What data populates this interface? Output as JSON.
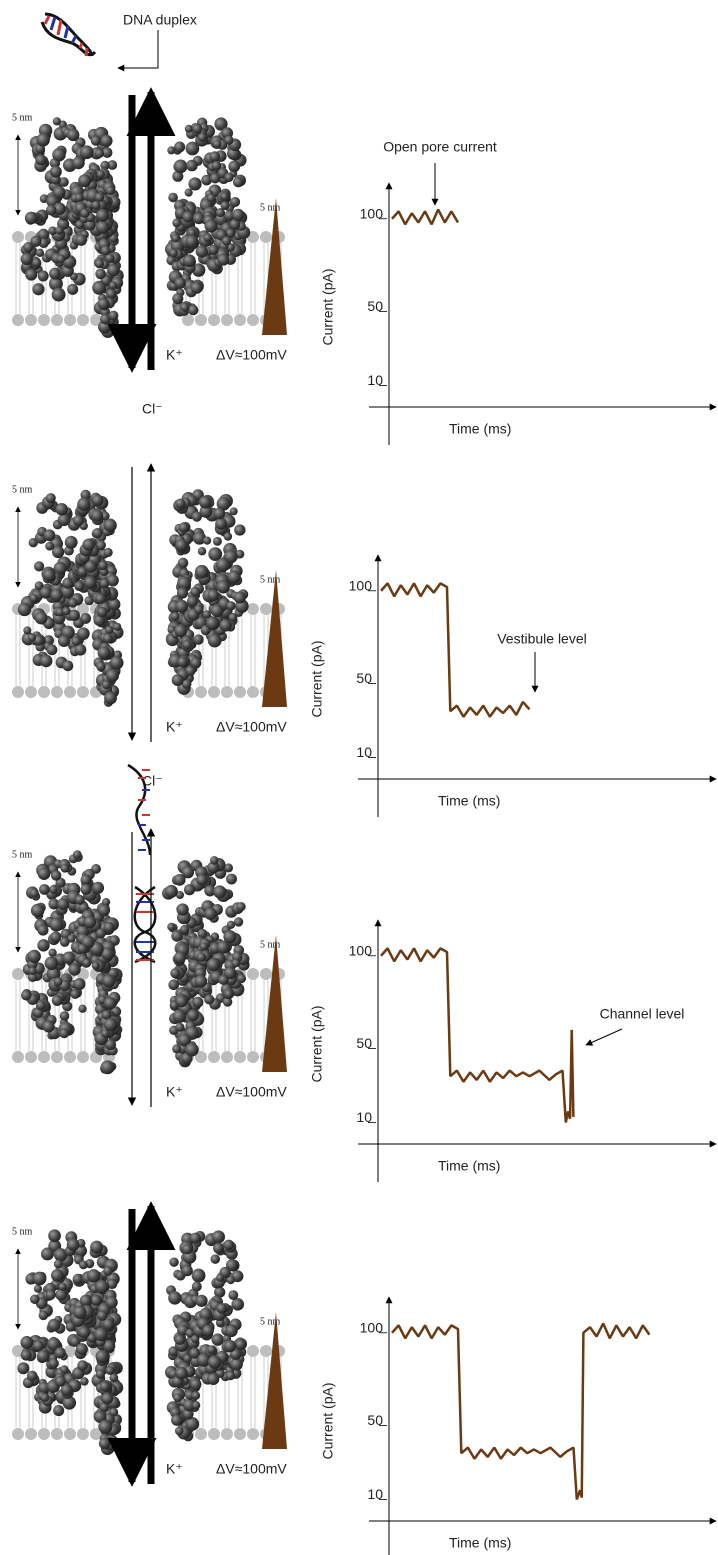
{
  "header": {
    "dna_label": "DNA duplex"
  },
  "panels": [
    {
      "scale_left": "5 nm",
      "scale_right": "5 nm",
      "cation": "K⁺",
      "voltage": "ΔV≈100mV",
      "anion": "Cl⁻"
    },
    {
      "scale_left": "5 nm",
      "scale_right": "5 nm",
      "cation": "K⁺",
      "voltage": "ΔV≈100mV",
      "anion": "Cl⁻"
    },
    {
      "scale_left": "5 nm",
      "scale_right": "5 nm",
      "cation": "K⁺",
      "voltage": "ΔV≈100mV"
    },
    {
      "scale_left": "5 nm",
      "scale_right": "5 nm",
      "cation": "K⁺",
      "voltage": "ΔV≈100mV"
    }
  ],
  "chart_data": [
    {
      "type": "line",
      "y_label": "Current (pA)",
      "x_label": "Time (ms)",
      "annotation": "Open pore current",
      "ylim": [
        0,
        115
      ],
      "yticks": [
        100,
        50,
        10
      ],
      "xlim": [
        0,
        100
      ],
      "color": "#6b3a12",
      "x": [
        0,
        2,
        4,
        6,
        8,
        10,
        12,
        14,
        16,
        18,
        20
      ],
      "values": [
        100,
        104,
        97,
        103,
        98,
        104,
        97,
        105,
        98,
        104,
        98
      ]
    },
    {
      "type": "line",
      "y_label": "Current (pA)",
      "x_label": "Time (ms)",
      "annotation": "Vestibule level",
      "ylim": [
        0,
        115
      ],
      "yticks": [
        100,
        50,
        10
      ],
      "xlim": [
        0,
        100
      ],
      "color": "#6b3a12",
      "x": [
        0,
        2,
        4,
        6,
        8,
        10,
        12,
        14,
        16,
        18,
        20,
        21,
        23,
        25,
        27,
        29,
        31,
        33,
        35,
        37,
        39,
        41,
        43,
        45
      ],
      "values": [
        100,
        104,
        97,
        103,
        98,
        104,
        97,
        103,
        99,
        104,
        102,
        35,
        38,
        32,
        37,
        33,
        38,
        32,
        37,
        34,
        38,
        33,
        40,
        36
      ]
    },
    {
      "type": "line",
      "y_label": "Current (pA)",
      "x_label": "Time (ms)",
      "annotation": "Channel level",
      "ylim": [
        0,
        115
      ],
      "yticks": [
        100,
        50,
        10
      ],
      "xlim": [
        0,
        100
      ],
      "color": "#6b3a12",
      "x": [
        0,
        2,
        4,
        6,
        8,
        10,
        12,
        14,
        16,
        18,
        20,
        21,
        23,
        25,
        27,
        29,
        31,
        33,
        35,
        37,
        39,
        41,
        43,
        45,
        48,
        51,
        53,
        55,
        56,
        56.7,
        57.3,
        57.8,
        58.3
      ],
      "values": [
        100,
        104,
        97,
        103,
        98,
        104,
        97,
        103,
        99,
        104,
        102,
        35,
        38,
        32,
        37,
        33,
        38,
        32,
        37,
        34,
        38,
        35,
        37,
        35,
        38,
        33,
        36,
        38,
        10,
        16,
        12,
        60,
        13
      ]
    },
    {
      "type": "line",
      "y_label": "Current (pA)",
      "x_label": "Time (ms)",
      "ylim": [
        0,
        115
      ],
      "yticks": [
        100,
        50,
        10
      ],
      "xlim": [
        0,
        100
      ],
      "color": "#6b3a12",
      "x": [
        0,
        2,
        4,
        6,
        8,
        10,
        12,
        14,
        16,
        18,
        20,
        21,
        23,
        25,
        27,
        29,
        31,
        33,
        35,
        37,
        39,
        41,
        43,
        45,
        48,
        51,
        53,
        55,
        56,
        57,
        57.5,
        58,
        60,
        62,
        64,
        66,
        68,
        70,
        72,
        74,
        76,
        78
      ],
      "values": [
        100,
        104,
        97,
        103,
        98,
        104,
        97,
        103,
        99,
        104,
        102,
        35,
        38,
        32,
        37,
        33,
        38,
        32,
        37,
        34,
        38,
        35,
        37,
        35,
        38,
        33,
        36,
        38,
        10,
        15,
        11,
        100,
        103,
        98,
        105,
        97,
        104,
        98,
        103,
        97,
        104,
        99
      ]
    }
  ]
}
